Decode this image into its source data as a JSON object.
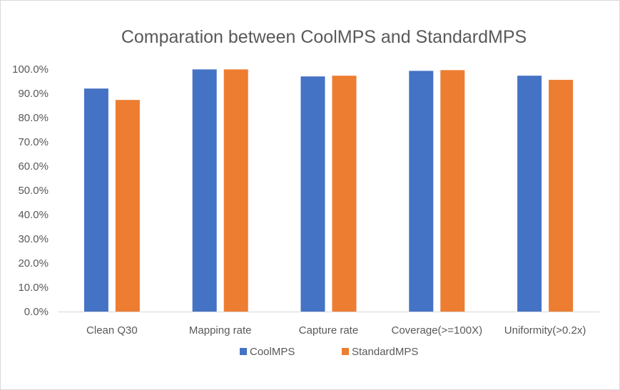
{
  "chart_data": {
    "type": "bar",
    "title": "Comparation between CoolMPS and StandardMPS",
    "categories": [
      "Clean Q30",
      "Mapping rate",
      "Capture rate",
      "Coverage(>=100X)",
      "Uniformity(>0.2x)"
    ],
    "series": [
      {
        "name": "CoolMPS",
        "color": "#4472c4",
        "values": [
          92.0,
          99.9,
          97.0,
          99.3,
          97.3
        ]
      },
      {
        "name": "StandardMPS",
        "color": "#ed7d31",
        "values": [
          87.3,
          99.9,
          97.3,
          99.6,
          95.6
        ]
      }
    ],
    "yticks": [
      "0.0%",
      "10.0%",
      "20.0%",
      "30.0%",
      "40.0%",
      "50.0%",
      "60.0%",
      "70.0%",
      "80.0%",
      "90.0%",
      "100.0%"
    ],
    "ylim": [
      0,
      100
    ],
    "grid": false,
    "legend": "bottom"
  }
}
